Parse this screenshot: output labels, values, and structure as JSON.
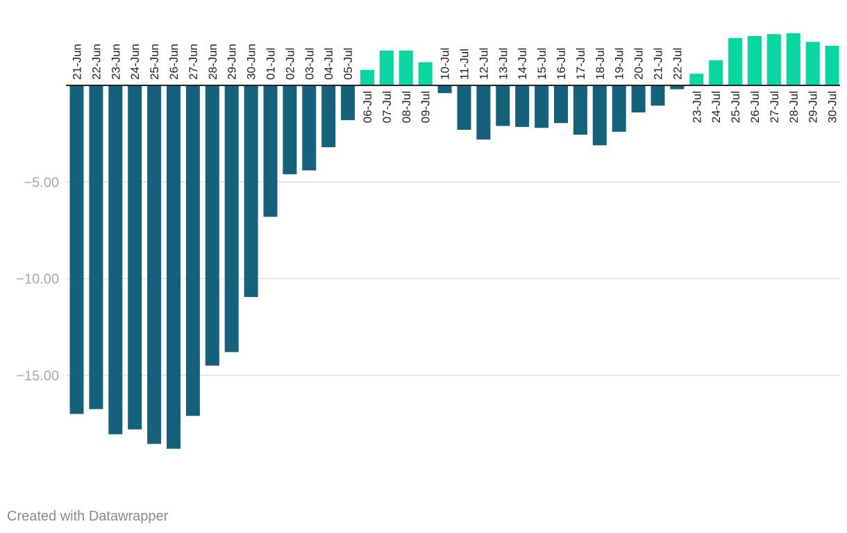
{
  "chart_data": {
    "type": "bar",
    "categories": [
      "21-Jun",
      "22-Jun",
      "23-Jun",
      "24-Jun",
      "25-Jun",
      "26-Jun",
      "27-Jun",
      "28-Jun",
      "29-Jun",
      "30-Jun",
      "01-Jul",
      "02-Jul",
      "03-Jul",
      "04-Jul",
      "05-Jul",
      "06-Jul",
      "07-Jul",
      "08-Jul",
      "09-Jul",
      "10-Jul",
      "11-Jul",
      "12-Jul",
      "13-Jul",
      "14-Jul",
      "15-Jul",
      "16-Jul",
      "17-Jul",
      "18-Jul",
      "19-Jul",
      "20-Jul",
      "21-Jul",
      "22-Jul",
      "23-Jul",
      "24-Jul",
      "25-Jul",
      "26-Jul",
      "27-Jul",
      "28-Jul",
      "29-Jul",
      "30-Jul"
    ],
    "values": [
      -17.0,
      -16.75,
      -18.05,
      -17.8,
      -18.55,
      -18.8,
      -17.1,
      -14.5,
      -13.8,
      -10.95,
      -6.8,
      -4.6,
      -4.4,
      -3.2,
      -1.8,
      0.8,
      1.8,
      1.8,
      1.2,
      -0.4,
      -2.3,
      -2.8,
      -2.1,
      -2.15,
      -2.2,
      -1.95,
      -2.55,
      -3.1,
      -2.4,
      -1.4,
      -1.05,
      -0.2,
      0.6,
      1.3,
      2.45,
      2.55,
      2.65,
      2.7,
      2.25,
      2.05
    ],
    "ylim": [
      -20,
      2.7
    ],
    "yticks": [
      -5,
      -10,
      -15
    ],
    "ytick_labels": [
      "−5.00",
      "−10.00",
      "−15.00"
    ],
    "colors": {
      "positive": "#09d7a1",
      "negative": "#15607a",
      "grid": "#e0e0e0",
      "zero_line": "#222222"
    },
    "title": "",
    "xlabel": "",
    "ylabel": ""
  },
  "footer": {
    "credit": "Created with Datawrapper"
  }
}
